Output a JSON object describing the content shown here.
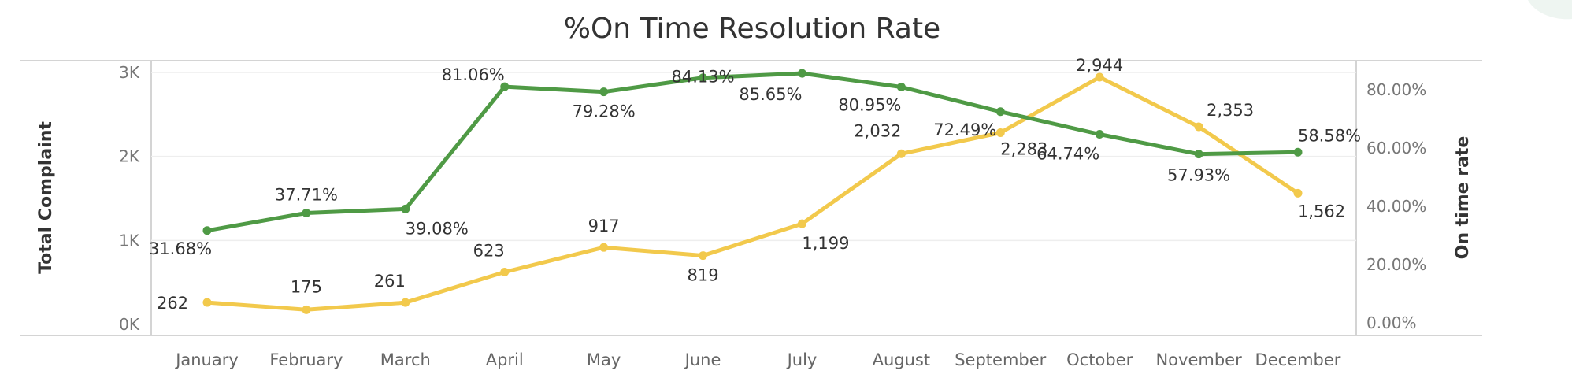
{
  "chart_data": {
    "type": "line",
    "title": "%On Time Resolution Rate",
    "ylabel": "Total Complaint",
    "y2label": "On time rate",
    "categories": [
      "January",
      "February",
      "March",
      "April",
      "May",
      "June",
      "July",
      "August",
      "September",
      "October",
      "November",
      "December"
    ],
    "ylim": [
      0,
      3000
    ],
    "yticks": [
      "0K",
      "1K",
      "2K",
      "3K"
    ],
    "y2lim": [
      0,
      100
    ],
    "y2ticks": [
      "0.00%",
      "20.00%",
      "40.00%",
      "60.00%",
      "80.00%"
    ],
    "grid": true,
    "series": [
      {
        "axis": "left",
        "color": "#f2c94c",
        "values": [
          262,
          175,
          261,
          623,
          917,
          819,
          1199,
          2032,
          2283,
          2944,
          2353,
          1562
        ],
        "labels": [
          "262",
          "175",
          "261",
          "623",
          "917",
          "819",
          "1,199",
          "2,032",
          "2,283",
          "2,944",
          "2,353",
          "1,562"
        ]
      },
      {
        "axis": "right",
        "color": "#4f9a45",
        "values": [
          31.68,
          37.71,
          39.08,
          81.06,
          79.28,
          84.13,
          85.65,
          80.95,
          72.49,
          64.74,
          57.93,
          58.58
        ],
        "labels": [
          "31.68%",
          "37.71%",
          "39.08%",
          "81.06%",
          "79.28%",
          "84.13%",
          "85.65%",
          "80.95%",
          "72.49%",
          "64.74%",
          "57.93%",
          "58.58%"
        ]
      }
    ]
  }
}
